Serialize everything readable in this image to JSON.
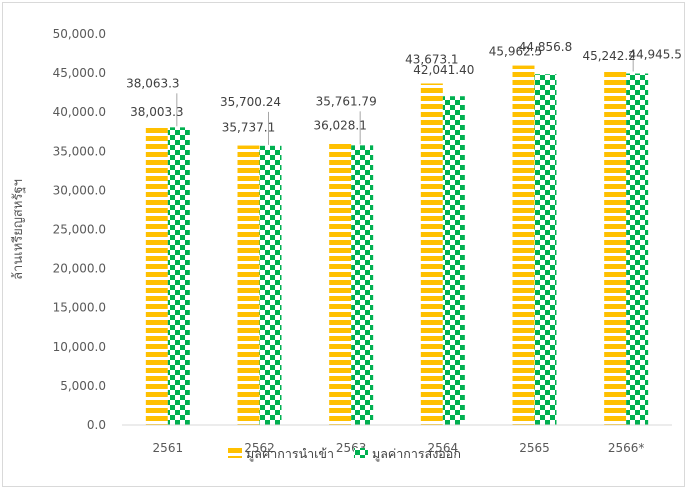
{
  "chart_data": {
    "type": "bar",
    "categories": [
      "2561",
      "2562",
      "2563",
      "2564",
      "2565",
      "2566*"
    ],
    "series": [
      {
        "name": "มูลค่าการนำเข้า",
        "values": [
          38003.3,
          35737.1,
          36028.1,
          43673.1,
          45962.5,
          45242.2
        ],
        "labels": [
          "38,003.3",
          "35,737.1",
          "36,028.1",
          "43,673.1",
          "45,962.5",
          "45,242.2"
        ],
        "color": "#FFC000",
        "pattern": "horizontal-stripes"
      },
      {
        "name": "มูลค่าการส่งออก",
        "values": [
          38063.3,
          35700.24,
          35761.79,
          42041.4,
          44856.8,
          44945.5
        ],
        "labels": [
          "38,063.3",
          "35,700.24",
          "35,761.79",
          "42,041.40",
          "44,856.8",
          "44,945.5"
        ],
        "color": "#00B050",
        "pattern": "checkerboard"
      }
    ],
    "ylabel": "ล้านเหรียญสหรัฐฯ",
    "ylim": [
      0,
      50000
    ],
    "yticks": [
      "0.0",
      "5,000.0",
      "10,000.0",
      "15,000.0",
      "20,000.0",
      "25,000.0",
      "30,000.0",
      "35,000.0",
      "40,000.0",
      "45,000.0",
      "50,000.0"
    ],
    "grid": false,
    "legend": "bottom"
  }
}
